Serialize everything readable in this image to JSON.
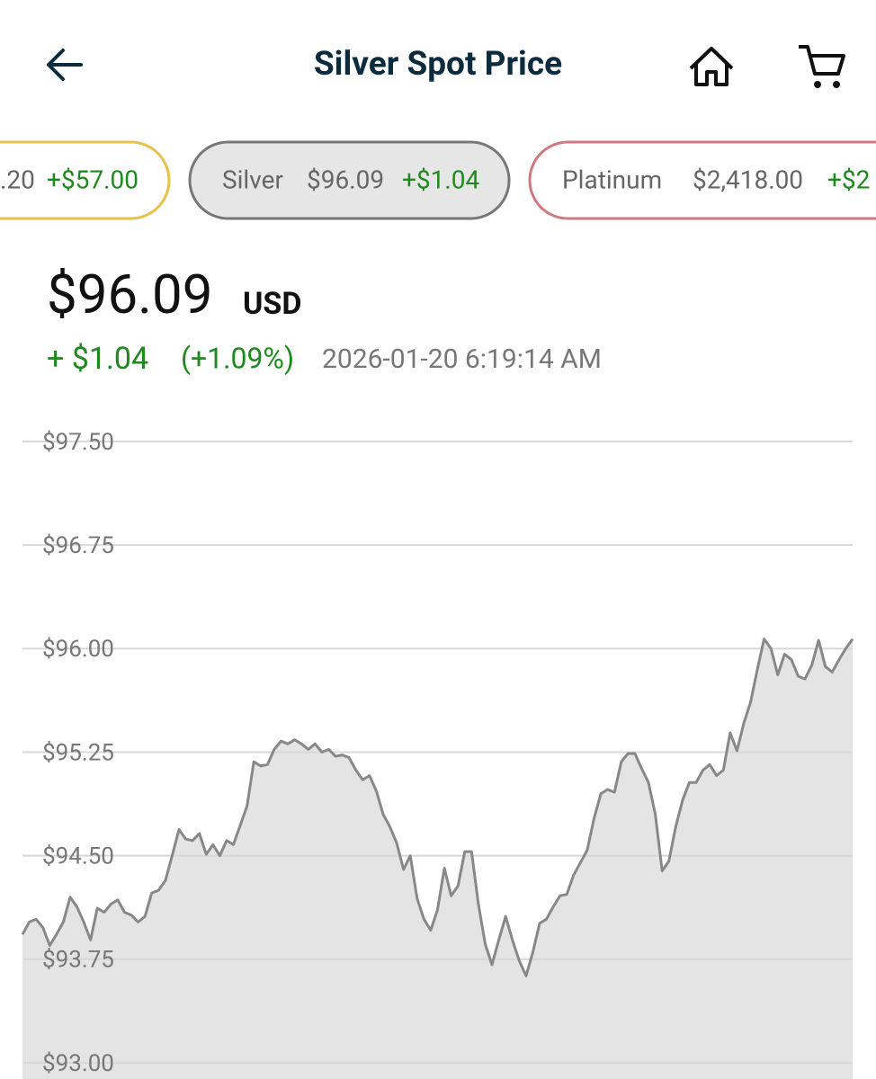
{
  "header": {
    "title": "Silver Spot Price"
  },
  "tabs": [
    {
      "name": "",
      "price": ".20",
      "change": "+$57.00"
    },
    {
      "name": "Silver",
      "price": "$96.09",
      "change": "+$1.04"
    },
    {
      "name": "Platinum",
      "price": "$2,418.00",
      "change": "+$2"
    }
  ],
  "quote": {
    "price": "$96.09",
    "currency": "USD",
    "change": "+ $1.04",
    "percent": "(+1.09%)",
    "timestamp": "2026-01-20 6:19:14 AM"
  },
  "chart_data": {
    "type": "area",
    "color": "#888888",
    "fill": "#e4e4e4",
    "grid": true,
    "ylim": [
      93.0,
      97.5
    ],
    "yticks": [
      {
        "value": 97.5,
        "label": "$97.50"
      },
      {
        "value": 96.75,
        "label": "$96.75"
      },
      {
        "value": 96.0,
        "label": "$96.00"
      },
      {
        "value": 95.25,
        "label": "$95.25"
      },
      {
        "value": 94.5,
        "label": "$94.50"
      },
      {
        "value": 93.75,
        "label": "$93.75"
      },
      {
        "value": 93.0,
        "label": "$93.00"
      }
    ],
    "values": [
      93.93,
      94.02,
      94.04,
      93.98,
      93.85,
      93.93,
      94.02,
      94.2,
      94.13,
      94.02,
      93.89,
      94.12,
      94.09,
      94.15,
      94.18,
      94.09,
      94.07,
      94.02,
      94.06,
      94.23,
      94.25,
      94.32,
      94.5,
      94.69,
      94.62,
      94.61,
      94.66,
      94.51,
      94.58,
      94.5,
      94.61,
      94.58,
      94.72,
      94.86,
      95.18,
      95.15,
      95.16,
      95.27,
      95.33,
      95.31,
      95.34,
      95.31,
      95.27,
      95.31,
      95.25,
      95.27,
      95.22,
      95.23,
      95.21,
      95.12,
      95.05,
      95.08,
      94.97,
      94.8,
      94.71,
      94.59,
      94.4,
      94.5,
      94.19,
      94.04,
      93.96,
      94.11,
      94.41,
      94.21,
      94.28,
      94.53,
      94.53,
      94.15,
      93.86,
      93.71,
      93.89,
      94.06,
      93.89,
      93.74,
      93.63,
      93.8,
      94.01,
      94.04,
      94.13,
      94.21,
      94.22,
      94.36,
      94.45,
      94.54,
      94.77,
      94.95,
      94.98,
      94.96,
      95.18,
      95.24,
      95.24,
      95.13,
      95.03,
      94.8,
      94.39,
      94.46,
      94.71,
      94.9,
      95.03,
      95.03,
      95.12,
      95.16,
      95.08,
      95.12,
      95.39,
      95.26,
      95.46,
      95.61,
      95.85,
      96.07,
      96.0,
      95.81,
      95.96,
      95.92,
      95.8,
      95.78,
      95.88,
      96.06,
      95.87,
      95.83,
      95.92,
      96.0,
      96.07
    ]
  }
}
